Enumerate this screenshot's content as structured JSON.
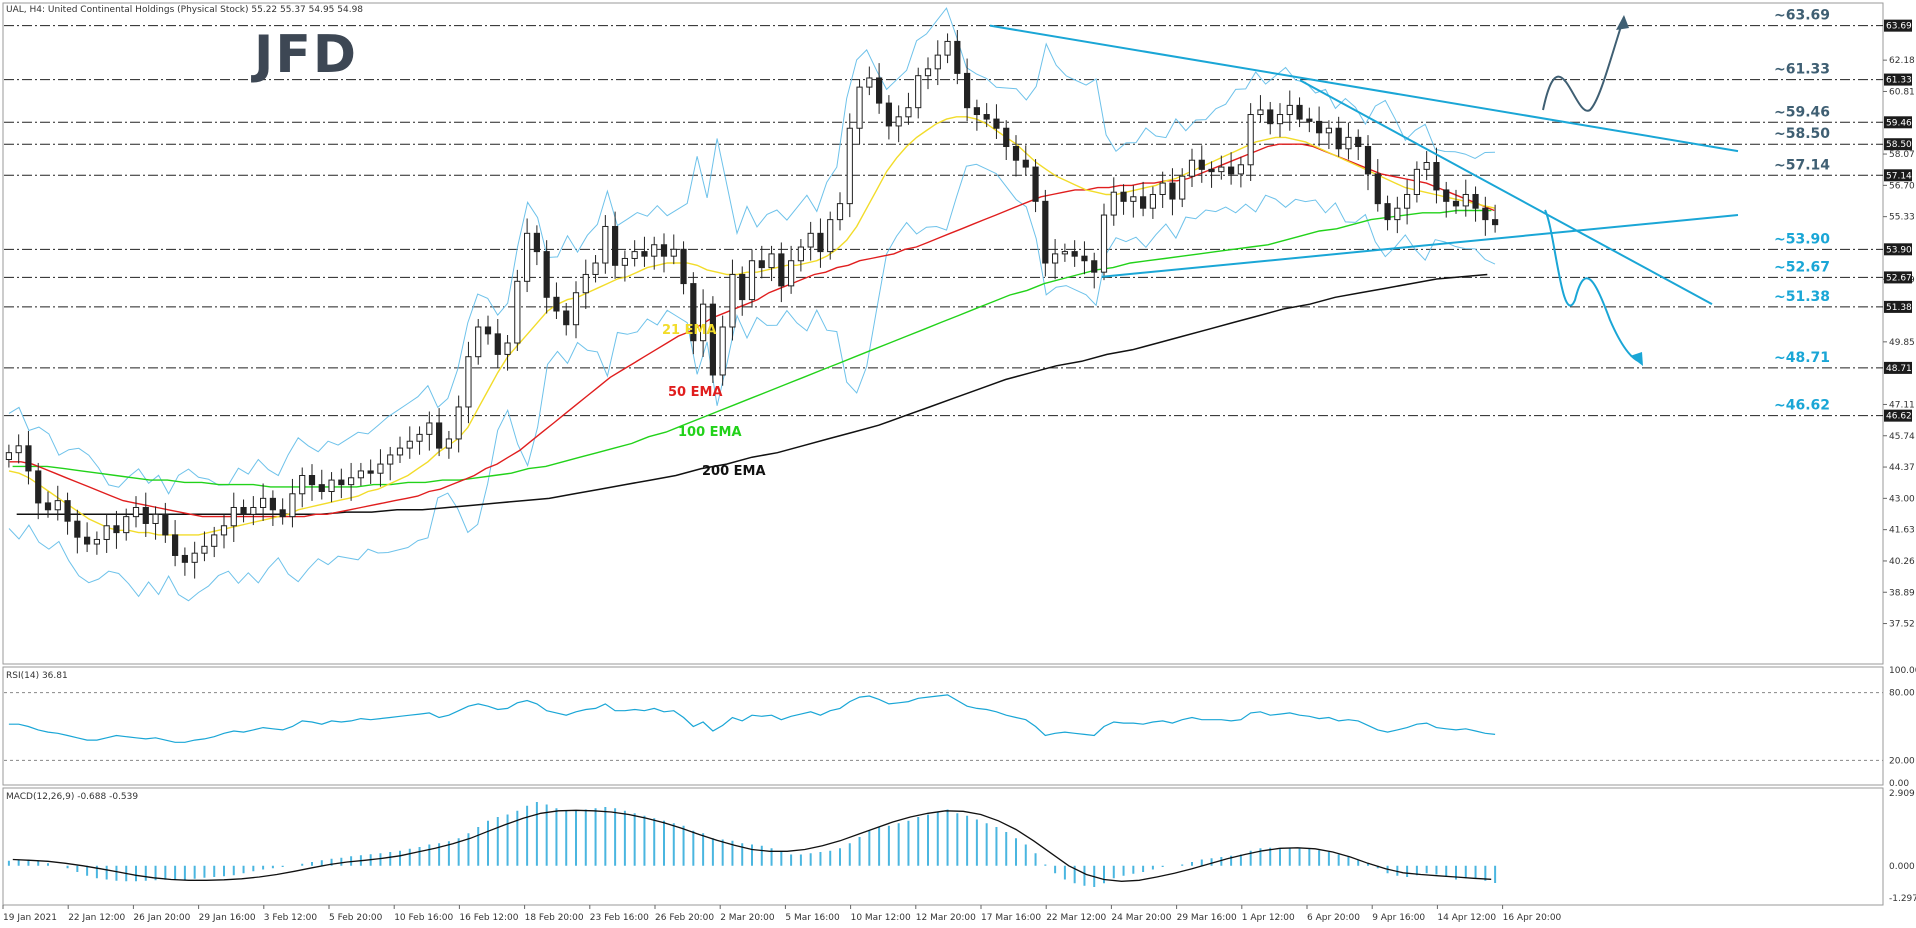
{
  "header": {
    "symbol_line": "UAL, H4:  United Continental Holdings (Physical Stock)  55.22 55.37 54.95 54.98",
    "logo_text": "JFD"
  },
  "colors": {
    "ema21": "#f2dc2a",
    "ema50": "#e01e1e",
    "ema100": "#22d21a",
    "ema200": "#111111",
    "bollinger": "#6ec2ea",
    "trendline": "#1aa6d6",
    "projection_up": "#3f5f73",
    "projection_down": "#1aa6d6",
    "level_label_upper": "#3f5f73",
    "level_label_lower": "#1aa6d6",
    "macd_hist": "#4ab6e0",
    "rsi_line": "#1aa6d6"
  },
  "chart_data": [
    {
      "type": "candlestick",
      "title": "UAL, H4",
      "ylim": [
        36.8,
        64.2
      ],
      "y_ticks": [
        "62.18",
        "60.81",
        "58.07",
        "56.70",
        "55.33",
        "52.59",
        "49.85",
        "47.11",
        "45.74",
        "44.37",
        "43.00",
        "41.63",
        "40.26",
        "38.89",
        "37.52"
      ],
      "x_ticks": [
        "19 Jan 2021",
        "22 Jan 12:00",
        "26 Jan 20:00",
        "29 Jan 16:00",
        "3 Feb 12:00",
        "5 Feb 20:00",
        "10 Feb 16:00",
        "16 Feb 12:00",
        "18 Feb 20:00",
        "23 Feb 16:00",
        "26 Feb 20:00",
        "2 Mar 20:00",
        "5 Mar 16:00",
        "10 Mar 12:00",
        "12 Mar 20:00",
        "17 Mar 16:00",
        "22 Mar 12:00",
        "24 Mar 20:00",
        "29 Mar 16:00",
        "1 Apr 12:00",
        "6 Apr 20:00",
        "9 Apr 16:00",
        "14 Apr 12:00",
        "16 Apr 20:00"
      ],
      "price_tags": [
        "63.69",
        "61.33",
        "59.46",
        "58.50",
        "57.14",
        "53.90",
        "52.67",
        "51.38",
        "48.71",
        "46.62"
      ],
      "levels": [
        {
          "value": 63.69,
          "label": "~63.69",
          "style": "upper"
        },
        {
          "value": 61.33,
          "label": "~61.33",
          "style": "upper"
        },
        {
          "value": 59.46,
          "label": "~59.46",
          "style": "upper"
        },
        {
          "value": 58.5,
          "label": "~58.50",
          "style": "upper"
        },
        {
          "value": 57.14,
          "label": "~57.14",
          "style": "upper"
        },
        {
          "value": 53.9,
          "label": "~53.90",
          "style": "lower"
        },
        {
          "value": 52.67,
          "label": "~52.67",
          "style": "lower"
        },
        {
          "value": 51.38,
          "label": "~51.38",
          "style": "lower"
        },
        {
          "value": 48.71,
          "label": "~48.71",
          "style": "lower"
        },
        {
          "value": 46.62,
          "label": "~46.62",
          "style": "lower"
        }
      ],
      "series_labels": [
        {
          "name": "21 EMA",
          "key": "ema21"
        },
        {
          "name": "50 EMA",
          "key": "ema50"
        },
        {
          "name": "100 EMA",
          "key": "ema100"
        },
        {
          "name": "200 EMA",
          "key": "ema200"
        }
      ],
      "close": [
        45.0,
        45.3,
        44.2,
        42.8,
        42.5,
        42.9,
        42.0,
        41.3,
        41.0,
        41.2,
        41.8,
        41.5,
        42.2,
        42.6,
        41.9,
        42.3,
        41.4,
        40.5,
        40.2,
        40.6,
        40.9,
        41.4,
        41.8,
        42.6,
        42.3,
        42.6,
        43.0,
        42.5,
        42.2,
        43.2,
        44.0,
        43.6,
        43.3,
        43.8,
        43.6,
        43.9,
        44.2,
        44.1,
        44.5,
        44.9,
        45.2,
        45.5,
        45.8,
        46.3,
        45.2,
        45.6,
        47.0,
        49.2,
        50.5,
        50.2,
        49.3,
        49.8,
        52.5,
        54.6,
        53.8,
        51.8,
        51.2,
        50.6,
        52.0,
        52.8,
        53.3,
        54.9,
        53.2,
        53.5,
        53.8,
        53.6,
        54.1,
        53.6,
        53.9,
        52.4,
        49.9,
        51.5,
        48.4,
        50.5,
        52.8,
        51.7,
        53.4,
        53.1,
        53.7,
        52.3,
        53.4,
        54.0,
        54.6,
        53.8,
        55.2,
        55.9,
        59.2,
        61.0,
        61.4,
        60.3,
        59.3,
        59.7,
        60.1,
        61.5,
        61.8,
        62.4,
        63.0,
        61.6,
        60.1,
        59.8,
        59.6,
        59.2,
        58.4,
        57.8,
        57.5,
        56.0,
        53.3,
        53.7,
        53.8,
        53.6,
        53.4,
        52.9,
        55.4,
        56.4,
        56.0,
        56.2,
        55.7,
        56.3,
        56.8,
        56.1,
        57.1,
        57.8,
        57.4,
        57.3,
        57.5,
        57.2,
        57.6,
        59.8,
        60.0,
        59.4,
        59.8,
        60.2,
        59.6,
        59.5,
        59.0,
        59.2,
        58.3,
        58.8,
        58.4,
        57.2,
        55.9,
        55.2,
        55.7,
        56.3,
        57.4,
        57.7,
        56.5,
        56.0,
        55.8,
        56.3,
        55.7,
        55.2,
        54.98
      ],
      "ema21": [
        44.2,
        44.1,
        43.9,
        43.6,
        43.3,
        43.0,
        42.7,
        42.4,
        42.1,
        41.9,
        41.7,
        41.6,
        41.6,
        41.5,
        41.5,
        41.4,
        41.4,
        41.4,
        41.4,
        41.4,
        41.5,
        41.6,
        41.7,
        41.8,
        41.9,
        42.0,
        42.1,
        42.2,
        42.3,
        42.5,
        42.6,
        42.7,
        42.8,
        42.9,
        43.0,
        43.1,
        43.3,
        43.4,
        43.6,
        43.8,
        44.0,
        44.3,
        44.6,
        45.0,
        45.3,
        45.6,
        46.1,
        46.9,
        47.7,
        48.5,
        49.2,
        49.7,
        50.2,
        50.7,
        51.2,
        51.5,
        51.7,
        51.8,
        52.0,
        52.2,
        52.4,
        52.6,
        52.7,
        52.9,
        53.1,
        53.2,
        53.3,
        53.3,
        53.3,
        53.2,
        53.0,
        52.9,
        52.8,
        52.8,
        52.9,
        52.9,
        53.0,
        53.1,
        53.2,
        53.2,
        53.3,
        53.4,
        53.6,
        53.9,
        54.3,
        54.9,
        55.7,
        56.5,
        57.3,
        57.9,
        58.4,
        58.8,
        59.1,
        59.4,
        59.6,
        59.7,
        59.7,
        59.6,
        59.4,
        59.1,
        58.8,
        58.5,
        58.1,
        57.7,
        57.4,
        57.1,
        56.9,
        56.7,
        56.5,
        56.4,
        56.3,
        56.3,
        56.4,
        56.5,
        56.6,
        56.7,
        56.9,
        57.0,
        57.2,
        57.4,
        57.6,
        57.8,
        58.0,
        58.2,
        58.4,
        58.6,
        58.7,
        58.8,
        58.8,
        58.7,
        58.6,
        58.4,
        58.2,
        58.0,
        57.8,
        57.6,
        57.4,
        57.2,
        57.0,
        56.8,
        56.6,
        56.5,
        56.4,
        56.3,
        56.2,
        56.1,
        56.0,
        55.9,
        55.8,
        55.7
      ],
      "ema50": [
        44.6,
        44.6,
        44.5,
        44.3,
        44.1,
        43.9,
        43.7,
        43.5,
        43.3,
        43.1,
        42.9,
        42.8,
        42.7,
        42.6,
        42.5,
        42.4,
        42.3,
        42.2,
        42.2,
        42.2,
        42.2,
        42.2,
        42.2,
        42.2,
        42.2,
        42.2,
        42.2,
        42.3,
        42.3,
        42.4,
        42.5,
        42.6,
        42.7,
        42.8,
        42.9,
        43.0,
        43.1,
        43.3,
        43.4,
        43.6,
        43.8,
        44.0,
        44.3,
        44.5,
        44.8,
        45.1,
        45.5,
        45.9,
        46.3,
        46.7,
        47.1,
        47.5,
        47.9,
        48.3,
        48.6,
        48.9,
        49.2,
        49.5,
        49.8,
        50.1,
        50.3,
        50.6,
        50.9,
        51.1,
        51.3,
        51.5,
        51.7,
        52.0,
        52.2,
        52.4,
        52.6,
        52.8,
        52.9,
        53.1,
        53.2,
        53.4,
        53.5,
        53.6,
        53.7,
        53.9,
        54.0,
        54.2,
        54.4,
        54.6,
        54.8,
        55.0,
        55.2,
        55.4,
        55.6,
        55.8,
        56.0,
        56.2,
        56.3,
        56.4,
        56.5,
        56.5,
        56.6,
        56.6,
        56.7,
        56.7,
        56.8,
        56.8,
        56.9,
        56.9,
        57.0,
        57.2,
        57.4,
        57.6,
        57.8,
        58.0,
        58.2,
        58.4,
        58.5,
        58.5,
        58.5,
        58.4,
        58.2,
        58.0,
        57.8,
        57.6,
        57.4,
        57.2,
        57.1,
        57.0,
        56.9,
        56.8,
        56.6,
        56.4,
        56.2,
        56.0,
        55.8,
        55.6
      ],
      "ema100": [
        44.4,
        44.4,
        44.4,
        44.3,
        44.2,
        44.1,
        44.0,
        43.9,
        43.8,
        43.8,
        43.7,
        43.7,
        43.6,
        43.6,
        43.6,
        43.5,
        43.5,
        43.5,
        43.5,
        43.5,
        43.5,
        43.6,
        43.6,
        43.7,
        43.7,
        43.8,
        43.8,
        43.9,
        44.0,
        44.1,
        44.3,
        44.4,
        44.6,
        44.8,
        45.0,
        45.2,
        45.4,
        45.7,
        45.9,
        46.2,
        46.5,
        46.8,
        47.1,
        47.4,
        47.7,
        48.0,
        48.3,
        48.6,
        48.9,
        49.2,
        49.5,
        49.8,
        50.1,
        50.4,
        50.7,
        51.0,
        51.3,
        51.6,
        51.9,
        52.1,
        52.4,
        52.6,
        52.8,
        53.0,
        53.1,
        53.3,
        53.4,
        53.5,
        53.6,
        53.7,
        53.8,
        53.9,
        54.0,
        54.1,
        54.3,
        54.5,
        54.7,
        54.8,
        55.0,
        55.2,
        55.3,
        55.4,
        55.5,
        55.5,
        55.6,
        55.6,
        55.6
      ],
      "ema200": [
        42.3,
        42.3,
        42.3,
        42.3,
        42.3,
        42.3,
        42.3,
        42.3,
        42.3,
        42.3,
        42.3,
        42.3,
        42.3,
        42.4,
        42.4,
        42.5,
        42.5,
        42.6,
        42.7,
        42.8,
        42.9,
        43.0,
        43.2,
        43.4,
        43.6,
        43.8,
        44.0,
        44.3,
        44.5,
        44.8,
        45.0,
        45.3,
        45.6,
        45.9,
        46.2,
        46.6,
        47.0,
        47.4,
        47.8,
        48.2,
        48.5,
        48.8,
        49.0,
        49.3,
        49.5,
        49.8,
        50.1,
        50.4,
        50.7,
        51.0,
        51.3,
        51.5,
        51.8,
        52.0,
        52.2,
        52.4,
        52.6,
        52.7,
        52.8
      ],
      "trendlines": [
        {
          "from": [
            "17 Mar",
            63.69
          ],
          "to": [
            "21 Apr",
            58.2
          ]
        },
        {
          "from": [
            "6 Apr",
            61.3
          ],
          "to": [
            "22 Apr",
            51.5
          ]
        },
        {
          "from": [
            "24 Mar",
            52.7
          ],
          "to": [
            "21 Apr",
            55.4
          ]
        }
      ]
    },
    {
      "type": "line",
      "title": "RSI(14) 36.81",
      "ylim": [
        0,
        100
      ],
      "y_ticks": [
        "100.00",
        "80.00",
        "20.00",
        "0.00"
      ],
      "values": [
        52,
        52,
        50,
        47,
        45,
        44,
        42,
        40,
        38,
        38,
        40,
        42,
        41,
        40,
        39,
        40,
        38,
        36,
        36,
        38,
        39,
        41,
        44,
        46,
        45,
        47,
        49,
        48,
        47,
        50,
        55,
        54,
        52,
        55,
        54,
        55,
        57,
        56,
        57,
        58,
        59,
        60,
        61,
        62,
        58,
        60,
        64,
        68,
        70,
        68,
        65,
        66,
        71,
        73,
        70,
        64,
        62,
        60,
        63,
        65,
        66,
        70,
        64,
        64,
        65,
        64,
        66,
        63,
        64,
        58,
        50,
        54,
        46,
        51,
        58,
        55,
        60,
        59,
        60,
        56,
        59,
        61,
        63,
        60,
        64,
        66,
        72,
        76,
        77,
        74,
        70,
        71,
        72,
        75,
        76,
        77,
        78,
        73,
        68,
        66,
        65,
        63,
        60,
        58,
        56,
        50,
        42,
        44,
        45,
        44,
        43,
        42,
        50,
        54,
        53,
        53,
        52,
        54,
        55,
        53,
        56,
        58,
        56,
        56,
        56,
        55,
        56,
        62,
        63,
        60,
        61,
        62,
        60,
        59,
        57,
        58,
        55,
        56,
        55,
        51,
        47,
        45,
        47,
        49,
        52,
        53,
        49,
        48,
        47,
        48,
        46,
        44,
        43
      ]
    },
    {
      "type": "bar",
      "title": "MACD(12,26,9) -0.688 -0.539",
      "ylim": [
        -1.45,
        2.95
      ],
      "y_ticks": [
        "2.909",
        "0.000",
        "-1.297"
      ],
      "values": [
        0.2,
        0.25,
        0.25,
        0.2,
        0.1,
        0.0,
        -0.1,
        -0.25,
        -0.4,
        -0.5,
        -0.55,
        -0.6,
        -0.62,
        -0.62,
        -0.6,
        -0.58,
        -0.56,
        -0.55,
        -0.55,
        -0.52,
        -0.48,
        -0.45,
        -0.42,
        -0.38,
        -0.3,
        -0.22,
        -0.15,
        -0.1,
        -0.05,
        0.0,
        0.08,
        0.15,
        0.22,
        0.28,
        0.32,
        0.38,
        0.42,
        0.46,
        0.5,
        0.55,
        0.6,
        0.68,
        0.75,
        0.85,
        0.9,
        0.98,
        1.1,
        1.3,
        1.55,
        1.8,
        1.95,
        2.05,
        2.2,
        2.4,
        2.55,
        2.45,
        2.3,
        2.2,
        2.2,
        2.25,
        2.3,
        2.35,
        2.3,
        2.2,
        2.1,
        2.0,
        1.9,
        1.8,
        1.7,
        1.6,
        1.4,
        1.3,
        1.1,
        1.05,
        1.0,
        0.9,
        0.85,
        0.8,
        0.7,
        0.55,
        0.45,
        0.45,
        0.5,
        0.55,
        0.6,
        0.7,
        0.9,
        1.15,
        1.4,
        1.55,
        1.6,
        1.7,
        1.8,
        1.95,
        2.05,
        2.15,
        2.25,
        2.1,
        2.0,
        1.85,
        1.7,
        1.55,
        1.35,
        1.1,
        0.85,
        0.5,
        0.05,
        -0.3,
        -0.55,
        -0.7,
        -0.8,
        -0.85,
        -0.7,
        -0.5,
        -0.4,
        -0.32,
        -0.25,
        -0.15,
        -0.05,
        0.0,
        0.05,
        0.15,
        0.25,
        0.3,
        0.35,
        0.4,
        0.45,
        0.6,
        0.7,
        0.72,
        0.7,
        0.72,
        0.7,
        0.68,
        0.62,
        0.55,
        0.45,
        0.38,
        0.25,
        0.1,
        -0.1,
        -0.3,
        -0.4,
        -0.45,
        -0.38,
        -0.3,
        -0.35,
        -0.45,
        -0.55,
        -0.5,
        -0.52,
        -0.6,
        -0.69
      ],
      "signal": [
        0.25,
        0.22,
        0.18,
        0.1,
        0.0,
        -0.12,
        -0.25,
        -0.38,
        -0.48,
        -0.55,
        -0.58,
        -0.58,
        -0.56,
        -0.52,
        -0.45,
        -0.35,
        -0.22,
        -0.08,
        0.05,
        0.15,
        0.22,
        0.3,
        0.4,
        0.55,
        0.7,
        0.88,
        1.1,
        1.38,
        1.65,
        1.9,
        2.1,
        2.2,
        2.22,
        2.2,
        2.15,
        2.05,
        1.9,
        1.72,
        1.5,
        1.25,
        1.02,
        0.82,
        0.65,
        0.58,
        0.58,
        0.65,
        0.8,
        1.0,
        1.25,
        1.5,
        1.75,
        1.95,
        2.1,
        2.2,
        2.18,
        2.05,
        1.8,
        1.45,
        1.0,
        0.5,
        0.0,
        -0.35,
        -0.55,
        -0.62,
        -0.58,
        -0.45,
        -0.3,
        -0.12,
        0.08,
        0.28,
        0.45,
        0.6,
        0.7,
        0.72,
        0.68,
        0.55,
        0.35,
        0.1,
        -0.12,
        -0.28,
        -0.35,
        -0.4,
        -0.45,
        -0.5,
        -0.54
      ]
    }
  ]
}
